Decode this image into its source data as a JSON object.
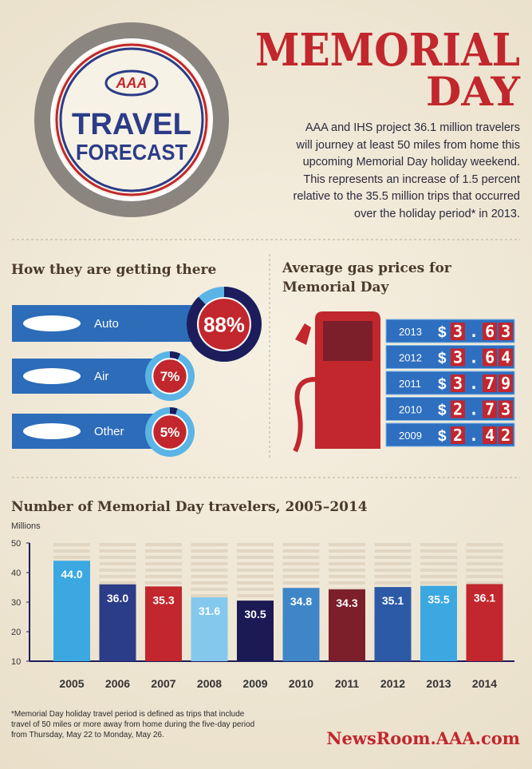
{
  "header": {
    "logo": "AAA",
    "badge_line1": "TRAVEL",
    "badge_line2": "FORECAST",
    "title_line1": "MEMORIAL",
    "title_line2": "DAY"
  },
  "intro": [
    "AAA and IHS project 36.1 million travelers",
    "will journey at least 50 miles from home this",
    "upcoming Memorial Day holiday weekend.",
    "This represents an increase of 1.5 percent",
    "relative to the 35.5 million trips that occurred",
    "over the holiday period* in 2013."
  ],
  "chart_data": [
    {
      "type": "donut",
      "title": "How they are getting there",
      "categories": [
        "Auto",
        "Air",
        "Other"
      ],
      "values": [
        88,
        7,
        5
      ],
      "value_labels": [
        "88%",
        "7%",
        "5%"
      ]
    },
    {
      "type": "table",
      "title": "Average gas prices for Memorial Day",
      "currency_symbol": "$",
      "categories": [
        "2013",
        "2012",
        "2011",
        "2010",
        "2009"
      ],
      "values": [
        3.63,
        3.64,
        3.79,
        2.73,
        2.42
      ]
    },
    {
      "type": "bar",
      "title": "Number of Memorial Day travelers, 2005–2014",
      "y_label": "Millions",
      "categories": [
        "2005",
        "2006",
        "2007",
        "2008",
        "2009",
        "2010",
        "2011",
        "2012",
        "2013",
        "2014"
      ],
      "values": [
        44.0,
        36.0,
        35.3,
        31.6,
        30.5,
        34.8,
        34.3,
        35.1,
        35.5,
        36.1
      ],
      "value_labels": [
        "44.0",
        "36.0",
        "35.3",
        "31.6",
        "30.5",
        "34.8",
        "34.3",
        "35.1",
        "35.5",
        "36.1"
      ],
      "colors": [
        "#3ba8e2",
        "#2b3c88",
        "#c1272d",
        "#84c8ee",
        "#1b1a55",
        "#3f86c9",
        "#7c1f2b",
        "#2c5aa6",
        "#3ba8e2",
        "#c1272d"
      ],
      "ylim": [
        10,
        50
      ],
      "yticks": [
        10,
        20,
        30,
        40,
        50
      ]
    }
  ],
  "footnote": [
    "*Memorial Day holiday travel period is defined as trips that include",
    "travel of 50 miles or more away from home during the five-day period",
    "from Thursday, May 22 to Monday, May 26."
  ],
  "source": "NewsRoom.AAA.com"
}
